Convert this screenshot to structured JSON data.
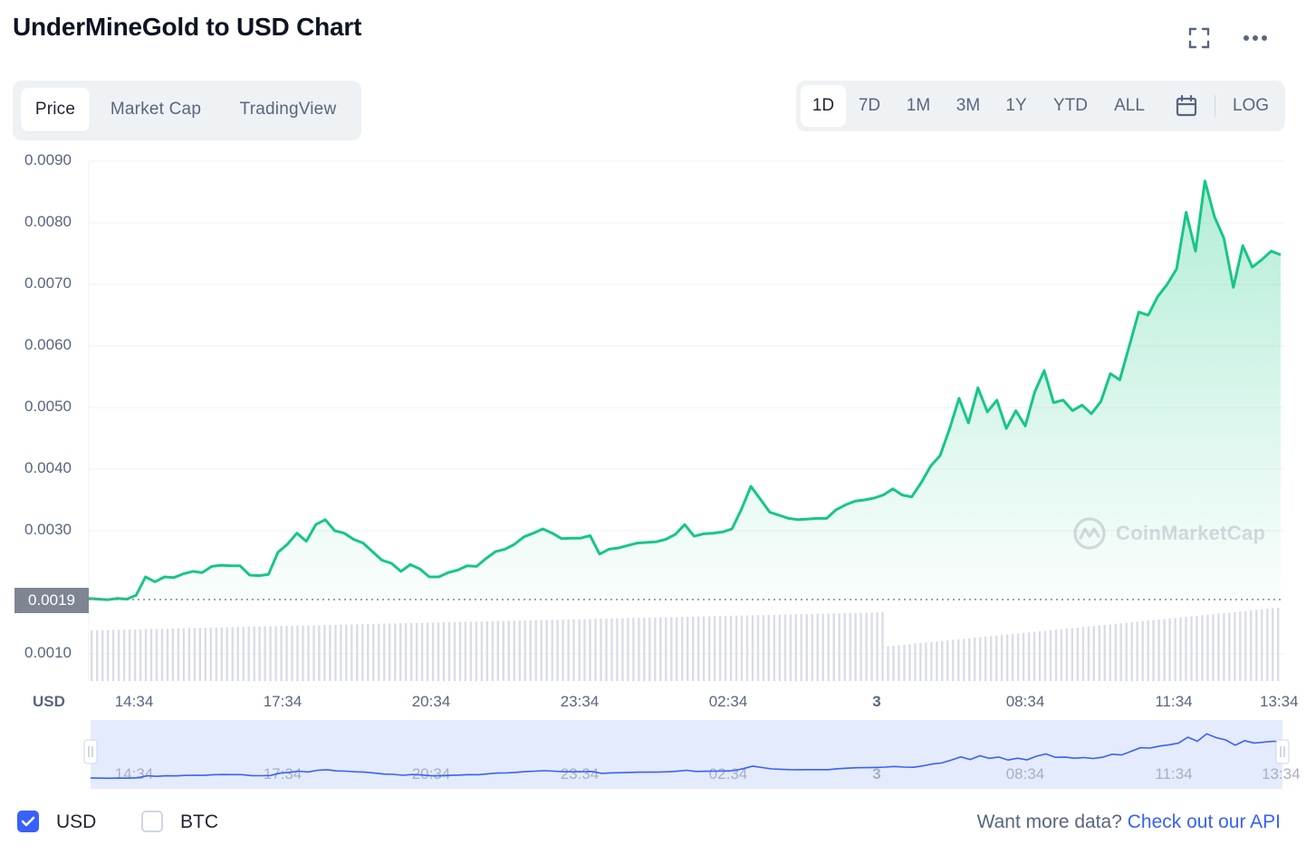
{
  "header": {
    "title": "UnderMineGold to USD Chart",
    "fullscreen_icon": "fullscreen-icon",
    "more_icon": "more-dots-icon"
  },
  "tabs": [
    {
      "label": "Price",
      "active": true
    },
    {
      "label": "Market Cap",
      "active": false
    },
    {
      "label": "TradingView",
      "active": false
    }
  ],
  "ranges": [
    {
      "label": "1D",
      "active": true
    },
    {
      "label": "7D",
      "active": false
    },
    {
      "label": "1M",
      "active": false
    },
    {
      "label": "3M",
      "active": false
    },
    {
      "label": "1Y",
      "active": false
    },
    {
      "label": "YTD",
      "active": false
    },
    {
      "label": "ALL",
      "active": false
    }
  ],
  "calendar_icon": "calendar-icon",
  "log_label": "LOG",
  "axis": {
    "currency_label": "USD",
    "current_price_tag": "0.0019"
  },
  "watermark": "CoinMarketCap",
  "colors": {
    "line": "#16c784",
    "accent": "#3861fb",
    "nav_line": "#3861fb",
    "volume": "#d9dde5"
  },
  "chart_data": {
    "type": "area",
    "ylabel": "USD",
    "y_ticks": [
      "0.0090",
      "0.0080",
      "0.0070",
      "0.0060",
      "0.0050",
      "0.0040",
      "0.0030",
      "0.0010"
    ],
    "ylim": [
      0.001,
      0.009
    ],
    "x_ticks": [
      "14:34",
      "17:34",
      "20:34",
      "23:34",
      "02:34",
      "3",
      "08:34",
      "11:34",
      "13:34"
    ],
    "grid": true,
    "series": [
      {
        "values": [
          0.0019,
          0.00189,
          0.00188,
          0.0019,
          0.00189,
          0.00195,
          0.00225,
          0.00217,
          0.00225,
          0.00224,
          0.0023,
          0.00234,
          0.00232,
          0.00242,
          0.00244,
          0.00243,
          0.00243,
          0.00228,
          0.00227,
          0.00229,
          0.00265,
          0.00278,
          0.00296,
          0.00283,
          0.0031,
          0.00318,
          0.003,
          0.00296,
          0.00286,
          0.0028,
          0.00266,
          0.00252,
          0.00247,
          0.00234,
          0.00245,
          0.00238,
          0.00225,
          0.00225,
          0.00232,
          0.00236,
          0.00243,
          0.00242,
          0.00255,
          0.00266,
          0.0027,
          0.00278,
          0.0029,
          0.00296,
          0.00303,
          0.00296,
          0.00287,
          0.00288,
          0.00288,
          0.00292,
          0.00262,
          0.0027,
          0.00272,
          0.00276,
          0.0028,
          0.00281,
          0.00282,
          0.00286,
          0.00294,
          0.0031,
          0.00291,
          0.00295,
          0.00296,
          0.00298,
          0.00303,
          0.00335,
          0.00372,
          0.00351,
          0.0033,
          0.00325,
          0.0032,
          0.00318,
          0.00319,
          0.0032,
          0.0032,
          0.00334,
          0.00342,
          0.00348,
          0.0035,
          0.00353,
          0.00358,
          0.00368,
          0.00358,
          0.00355,
          0.00378,
          0.00405,
          0.00422,
          0.00465,
          0.00515,
          0.00475,
          0.00532,
          0.00493,
          0.00512,
          0.00466,
          0.00495,
          0.0047,
          0.00525,
          0.0056,
          0.00508,
          0.00512,
          0.00495,
          0.00504,
          0.0049,
          0.0051,
          0.00555,
          0.00545,
          0.006,
          0.00655,
          0.0065,
          0.0068,
          0.007,
          0.00725,
          0.00817,
          0.00754,
          0.00868,
          0.0081,
          0.00775,
          0.00695,
          0.00763,
          0.00728,
          0.0074,
          0.00754,
          0.00748
        ]
      }
    ],
    "current_price": 0.0019,
    "navigator_x_ticks": [
      "14:34",
      "17:34",
      "20:34",
      "23:34",
      "02:34",
      "3",
      "08:34",
      "11:34",
      "13:34"
    ]
  },
  "footer": {
    "usd_label": "USD",
    "usd_checked": true,
    "btc_label": "BTC",
    "btc_checked": false,
    "api_prompt": "Want more data?",
    "api_link": "Check out our API"
  }
}
